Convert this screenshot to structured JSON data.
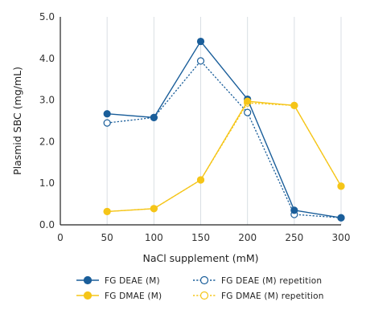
{
  "chart_data": {
    "type": "line",
    "xlabel": "NaCl supplement (mM)",
    "ylabel": "Plasmid SBC (mg/mL)",
    "xlim": [
      0,
      300
    ],
    "ylim": [
      0,
      5
    ],
    "x_ticks": [
      "0",
      "50",
      "100",
      "150",
      "200",
      "250",
      "300"
    ],
    "y_ticks": [
      "0.0",
      "1.0",
      "2.0",
      "3.0",
      "4.0",
      "5.0"
    ],
    "grid": "vertical",
    "legend_position": "bottom",
    "series": [
      {
        "name": "FG DEAE (M)",
        "color": "#1a5e9a",
        "style": "solid",
        "marker": "filled-circle",
        "x": [
          50,
          100,
          150,
          200,
          250,
          300
        ],
        "y": [
          2.67,
          2.58,
          4.41,
          3.02,
          0.35,
          0.17
        ]
      },
      {
        "name": "FG DEAE (M) repetition",
        "color": "#1a5e9a",
        "style": "dotted",
        "marker": "open-circle",
        "x": [
          50,
          100,
          150,
          200,
          250,
          300
        ],
        "y": [
          2.45,
          2.58,
          3.94,
          2.7,
          0.25,
          0.17
        ]
      },
      {
        "name": "FG DMAE (M)",
        "color": "#f5c518",
        "style": "solid",
        "marker": "filled-circle",
        "x": [
          50,
          100,
          150,
          200,
          250,
          300
        ],
        "y": [
          0.32,
          0.39,
          1.08,
          2.97,
          2.87,
          0.93
        ]
      },
      {
        "name": "FG DMAE (M) repetition",
        "color": "#f5c518",
        "style": "dotted",
        "marker": "open-circle",
        "x": [
          50,
          100,
          150,
          200,
          250,
          300
        ],
        "y": [
          0.32,
          0.39,
          1.08,
          2.93,
          2.87,
          0.93
        ]
      }
    ]
  }
}
